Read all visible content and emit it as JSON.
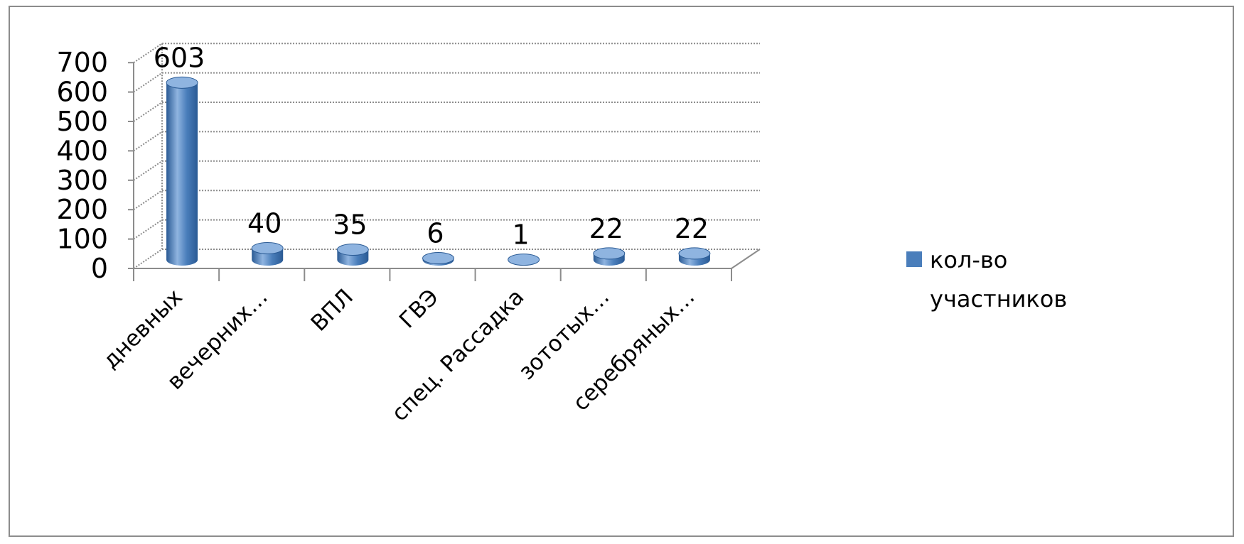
{
  "chart_data": {
    "type": "bar",
    "style": "3d-cylinder",
    "categories": [
      "дневных",
      "вечерних…",
      "ВПЛ",
      "ГВЭ",
      "спец. Рассадка",
      "зототых…",
      "серебряных…"
    ],
    "series": [
      {
        "name": "кол-во участников",
        "values": [
          603,
          40,
          35,
          6,
          1,
          22,
          22
        ],
        "color": "#4a7ebb"
      }
    ],
    "data_labels": [
      "603",
      "40",
      "35",
      "6",
      "1",
      "22",
      "22"
    ],
    "y_ticks": [
      "0",
      "100",
      "200",
      "300",
      "400",
      "500",
      "600",
      "700"
    ],
    "ylim": [
      0,
      700
    ],
    "grid": true,
    "legend_position": "right",
    "legend_lines": [
      "кол-во",
      "участников"
    ],
    "colors": {
      "bar": "#4a7ebb",
      "bar_dark": "#2a5a94",
      "bar_light": "#8fb4e0",
      "grid": "#8c8c8c",
      "frame": "#8c8c8c"
    }
  }
}
